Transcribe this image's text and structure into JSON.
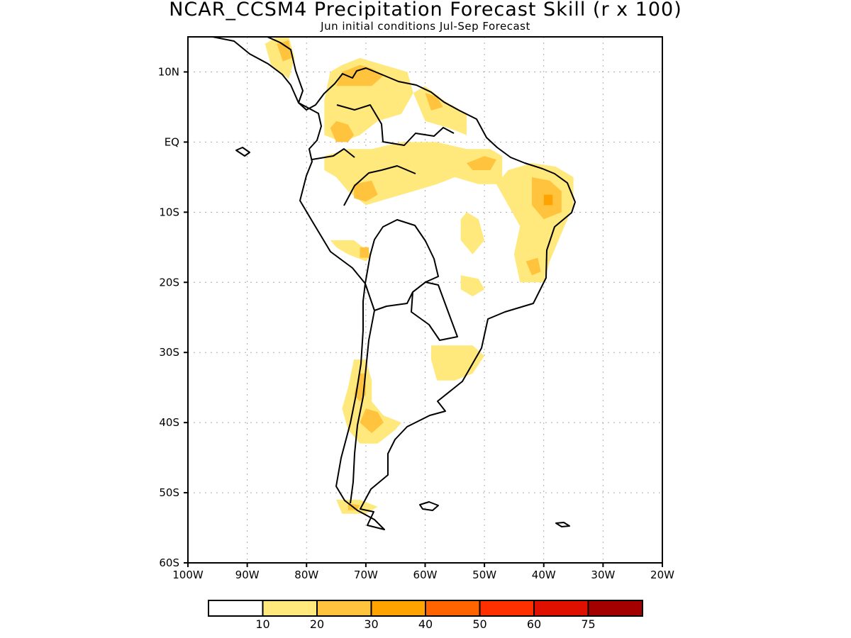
{
  "title": "NCAR_CCSM4 Precipitation Forecast Skill (r x 100)",
  "subtitle": "Jun initial conditions  Jul-Sep Forecast",
  "map": {
    "lon_range": [
      -100,
      -20
    ],
    "lat_range": [
      -60,
      15
    ],
    "x_ticks": [
      {
        "value": -100,
        "label": "100W"
      },
      {
        "value": -90,
        "label": "90W"
      },
      {
        "value": -80,
        "label": "80W"
      },
      {
        "value": -70,
        "label": "70W"
      },
      {
        "value": -60,
        "label": "60W"
      },
      {
        "value": -50,
        "label": "50W"
      },
      {
        "value": -40,
        "label": "40W"
      },
      {
        "value": -30,
        "label": "30W"
      },
      {
        "value": -20,
        "label": "20W"
      }
    ],
    "y_ticks": [
      {
        "value": 10,
        "label": "10N"
      },
      {
        "value": 0,
        "label": "EQ"
      },
      {
        "value": -10,
        "label": "10S"
      },
      {
        "value": -20,
        "label": "20S"
      },
      {
        "value": -30,
        "label": "30S"
      },
      {
        "value": -40,
        "label": "40S"
      },
      {
        "value": -50,
        "label": "50S"
      },
      {
        "value": -60,
        "label": "60S"
      }
    ],
    "grid": true,
    "skill_regions": [
      {
        "name": "central-america",
        "level": 1,
        "pts": [
          [
            -87,
            14
          ],
          [
            -85,
            15
          ],
          [
            -83,
            15
          ],
          [
            -82,
            12
          ],
          [
            -83,
            9
          ],
          [
            -86,
            11
          ]
        ]
      },
      {
        "name": "central-america-core",
        "level": 2,
        "pts": [
          [
            -85,
            14
          ],
          [
            -83,
            14.5
          ],
          [
            -82.5,
            12
          ],
          [
            -84,
            11.5
          ]
        ]
      },
      {
        "name": "north-colombia-venezuela",
        "level": 1,
        "pts": [
          [
            -77,
            6
          ],
          [
            -76,
            10
          ],
          [
            -74,
            11
          ],
          [
            -71,
            12
          ],
          [
            -67,
            11
          ],
          [
            -63,
            10
          ],
          [
            -62,
            7
          ],
          [
            -64,
            4
          ],
          [
            -68,
            3
          ],
          [
            -71,
            1
          ],
          [
            -74,
            0
          ],
          [
            -77,
            1
          ]
        ]
      },
      {
        "name": "north-colombia-core",
        "level": 2,
        "pts": [
          [
            -75,
            8
          ],
          [
            -74,
            10
          ],
          [
            -71,
            11
          ],
          [
            -69,
            10.5
          ],
          [
            -67,
            9.5
          ],
          [
            -69,
            8
          ],
          [
            -72,
            8
          ]
        ]
      },
      {
        "name": "colombia-west",
        "level": 2,
        "pts": [
          [
            -76,
            2
          ],
          [
            -75,
            3
          ],
          [
            -73,
            2.5
          ],
          [
            -72,
            1
          ],
          [
            -73,
            0
          ],
          [
            -75,
            0
          ]
        ]
      },
      {
        "name": "guyana",
        "level": 1,
        "pts": [
          [
            -62,
            7
          ],
          [
            -60,
            8
          ],
          [
            -57,
            6
          ],
          [
            -55,
            5
          ],
          [
            -53,
            4
          ],
          [
            -53,
            1
          ],
          [
            -56,
            2
          ],
          [
            -60,
            3
          ]
        ]
      },
      {
        "name": "guyana-core",
        "level": 2,
        "pts": [
          [
            -60,
            7
          ],
          [
            -58,
            6.5
          ],
          [
            -57,
            5
          ],
          [
            -59,
            4.5
          ]
        ]
      },
      {
        "name": "amazon-upper",
        "level": 1,
        "pts": [
          [
            -77,
            -2
          ],
          [
            -73,
            -1
          ],
          [
            -69,
            -1
          ],
          [
            -64,
            0
          ],
          [
            -58,
            0
          ],
          [
            -53,
            -1
          ],
          [
            -49,
            -1
          ],
          [
            -47,
            -2
          ],
          [
            -47,
            -6
          ],
          [
            -51,
            -6
          ],
          [
            -55,
            -5
          ],
          [
            -58,
            -6
          ],
          [
            -62,
            -7
          ],
          [
            -66,
            -8
          ],
          [
            -70,
            -9
          ],
          [
            -73,
            -7
          ],
          [
            -75,
            -5
          ],
          [
            -77,
            -4
          ]
        ]
      },
      {
        "name": "amazon-core",
        "level": 2,
        "pts": [
          [
            -72,
            -6
          ],
          [
            -69,
            -5.5
          ],
          [
            -68,
            -7.5
          ],
          [
            -70,
            -8.5
          ],
          [
            -72,
            -8
          ]
        ]
      },
      {
        "name": "para",
        "level": 2,
        "pts": [
          [
            -53,
            -3
          ],
          [
            -50,
            -2
          ],
          [
            -48,
            -2.5
          ],
          [
            -49,
            -4
          ],
          [
            -52,
            -4
          ]
        ]
      },
      {
        "name": "northeast-brazil",
        "level": 1,
        "pts": [
          [
            -46,
            -4
          ],
          [
            -42,
            -3
          ],
          [
            -38,
            -3.5
          ],
          [
            -35,
            -5
          ],
          [
            -35,
            -9
          ],
          [
            -37,
            -13
          ],
          [
            -39,
            -17
          ],
          [
            -40,
            -20
          ],
          [
            -44,
            -20
          ],
          [
            -45,
            -16
          ],
          [
            -44,
            -12
          ],
          [
            -46,
            -9
          ],
          [
            -48,
            -6
          ]
        ]
      },
      {
        "name": "northeast-core",
        "level": 2,
        "pts": [
          [
            -42,
            -5
          ],
          [
            -39,
            -5.5
          ],
          [
            -37,
            -7
          ],
          [
            -37,
            -10
          ],
          [
            -40,
            -11
          ],
          [
            -42,
            -9
          ]
        ]
      },
      {
        "name": "northeast-peak",
        "level": 3,
        "pts": [
          [
            -40,
            -7.5
          ],
          [
            -38.5,
            -7.5
          ],
          [
            -38.5,
            -9
          ],
          [
            -40,
            -9
          ]
        ]
      },
      {
        "name": "brazil-central",
        "level": 1,
        "pts": [
          [
            -53,
            -10
          ],
          [
            -51,
            -11
          ],
          [
            -50,
            -14
          ],
          [
            -52,
            -16
          ],
          [
            -54,
            -14
          ],
          [
            -54,
            -11
          ]
        ]
      },
      {
        "name": "minas",
        "level": 2,
        "pts": [
          [
            -43,
            -17
          ],
          [
            -41,
            -16.5
          ],
          [
            -40.5,
            -18.5
          ],
          [
            -42,
            -19
          ]
        ]
      },
      {
        "name": "sao-paulo",
        "level": 1,
        "pts": [
          [
            -54,
            -19
          ],
          [
            -51,
            -19.5
          ],
          [
            -50,
            -21
          ],
          [
            -52,
            -22
          ],
          [
            -54,
            -21
          ]
        ]
      },
      {
        "name": "peru-south",
        "level": 1,
        "pts": [
          [
            -76,
            -14
          ],
          [
            -72,
            -14
          ],
          [
            -69,
            -16
          ],
          [
            -70,
            -17
          ],
          [
            -73,
            -16
          ],
          [
            -75,
            -15
          ]
        ]
      },
      {
        "name": "peru-core",
        "level": 2,
        "pts": [
          [
            -71,
            -15
          ],
          [
            -69.5,
            -15
          ],
          [
            -69.5,
            -16.5
          ],
          [
            -71,
            -16.5
          ]
        ]
      },
      {
        "name": "uruguay",
        "level": 1,
        "pts": [
          [
            -59,
            -29
          ],
          [
            -56,
            -29
          ],
          [
            -52,
            -29
          ],
          [
            -50,
            -30.5
          ],
          [
            -52,
            -33
          ],
          [
            -55,
            -34
          ],
          [
            -58,
            -34
          ],
          [
            -59,
            -31
          ]
        ]
      },
      {
        "name": "chile-central",
        "level": 1,
        "pts": [
          [
            -72,
            -31
          ],
          [
            -70,
            -31
          ],
          [
            -69,
            -34
          ],
          [
            -69,
            -37
          ],
          [
            -67,
            -39
          ],
          [
            -64,
            -40
          ],
          [
            -65,
            -41
          ],
          [
            -68,
            -43
          ],
          [
            -71,
            -43
          ],
          [
            -73,
            -41
          ],
          [
            -74,
            -38
          ],
          [
            -73,
            -35
          ]
        ]
      },
      {
        "name": "chile-core",
        "level": 2,
        "pts": [
          [
            -71,
            -33
          ],
          [
            -70,
            -33
          ],
          [
            -70,
            -36
          ],
          [
            -71,
            -37
          ],
          [
            -72,
            -36
          ]
        ]
      },
      {
        "name": "patagonia-core",
        "level": 2,
        "pts": [
          [
            -70,
            -38
          ],
          [
            -68,
            -38.5
          ],
          [
            -67,
            -40
          ],
          [
            -69,
            -41.5
          ],
          [
            -71,
            -40
          ]
        ]
      },
      {
        "name": "tierra-del-fuego",
        "level": 1,
        "pts": [
          [
            -75,
            -51
          ],
          [
            -71,
            -51
          ],
          [
            -68,
            -52
          ],
          [
            -70,
            -53
          ],
          [
            -74,
            -53
          ]
        ]
      },
      {
        "name": "tierra-core",
        "level": 2,
        "pts": [
          [
            -73,
            -51.5
          ],
          [
            -71,
            -51.8
          ],
          [
            -71.5,
            -52.5
          ],
          [
            -73,
            -52.5
          ]
        ]
      }
    ]
  },
  "colorbar": {
    "colors": [
      "#ffffff",
      "#ffe87c",
      "#ffc33e",
      "#ffa300",
      "#ff6400",
      "#ff3000",
      "#e01000",
      "#a50000"
    ],
    "labels": [
      "10",
      "20",
      "30",
      "40",
      "50",
      "60",
      "75"
    ]
  }
}
